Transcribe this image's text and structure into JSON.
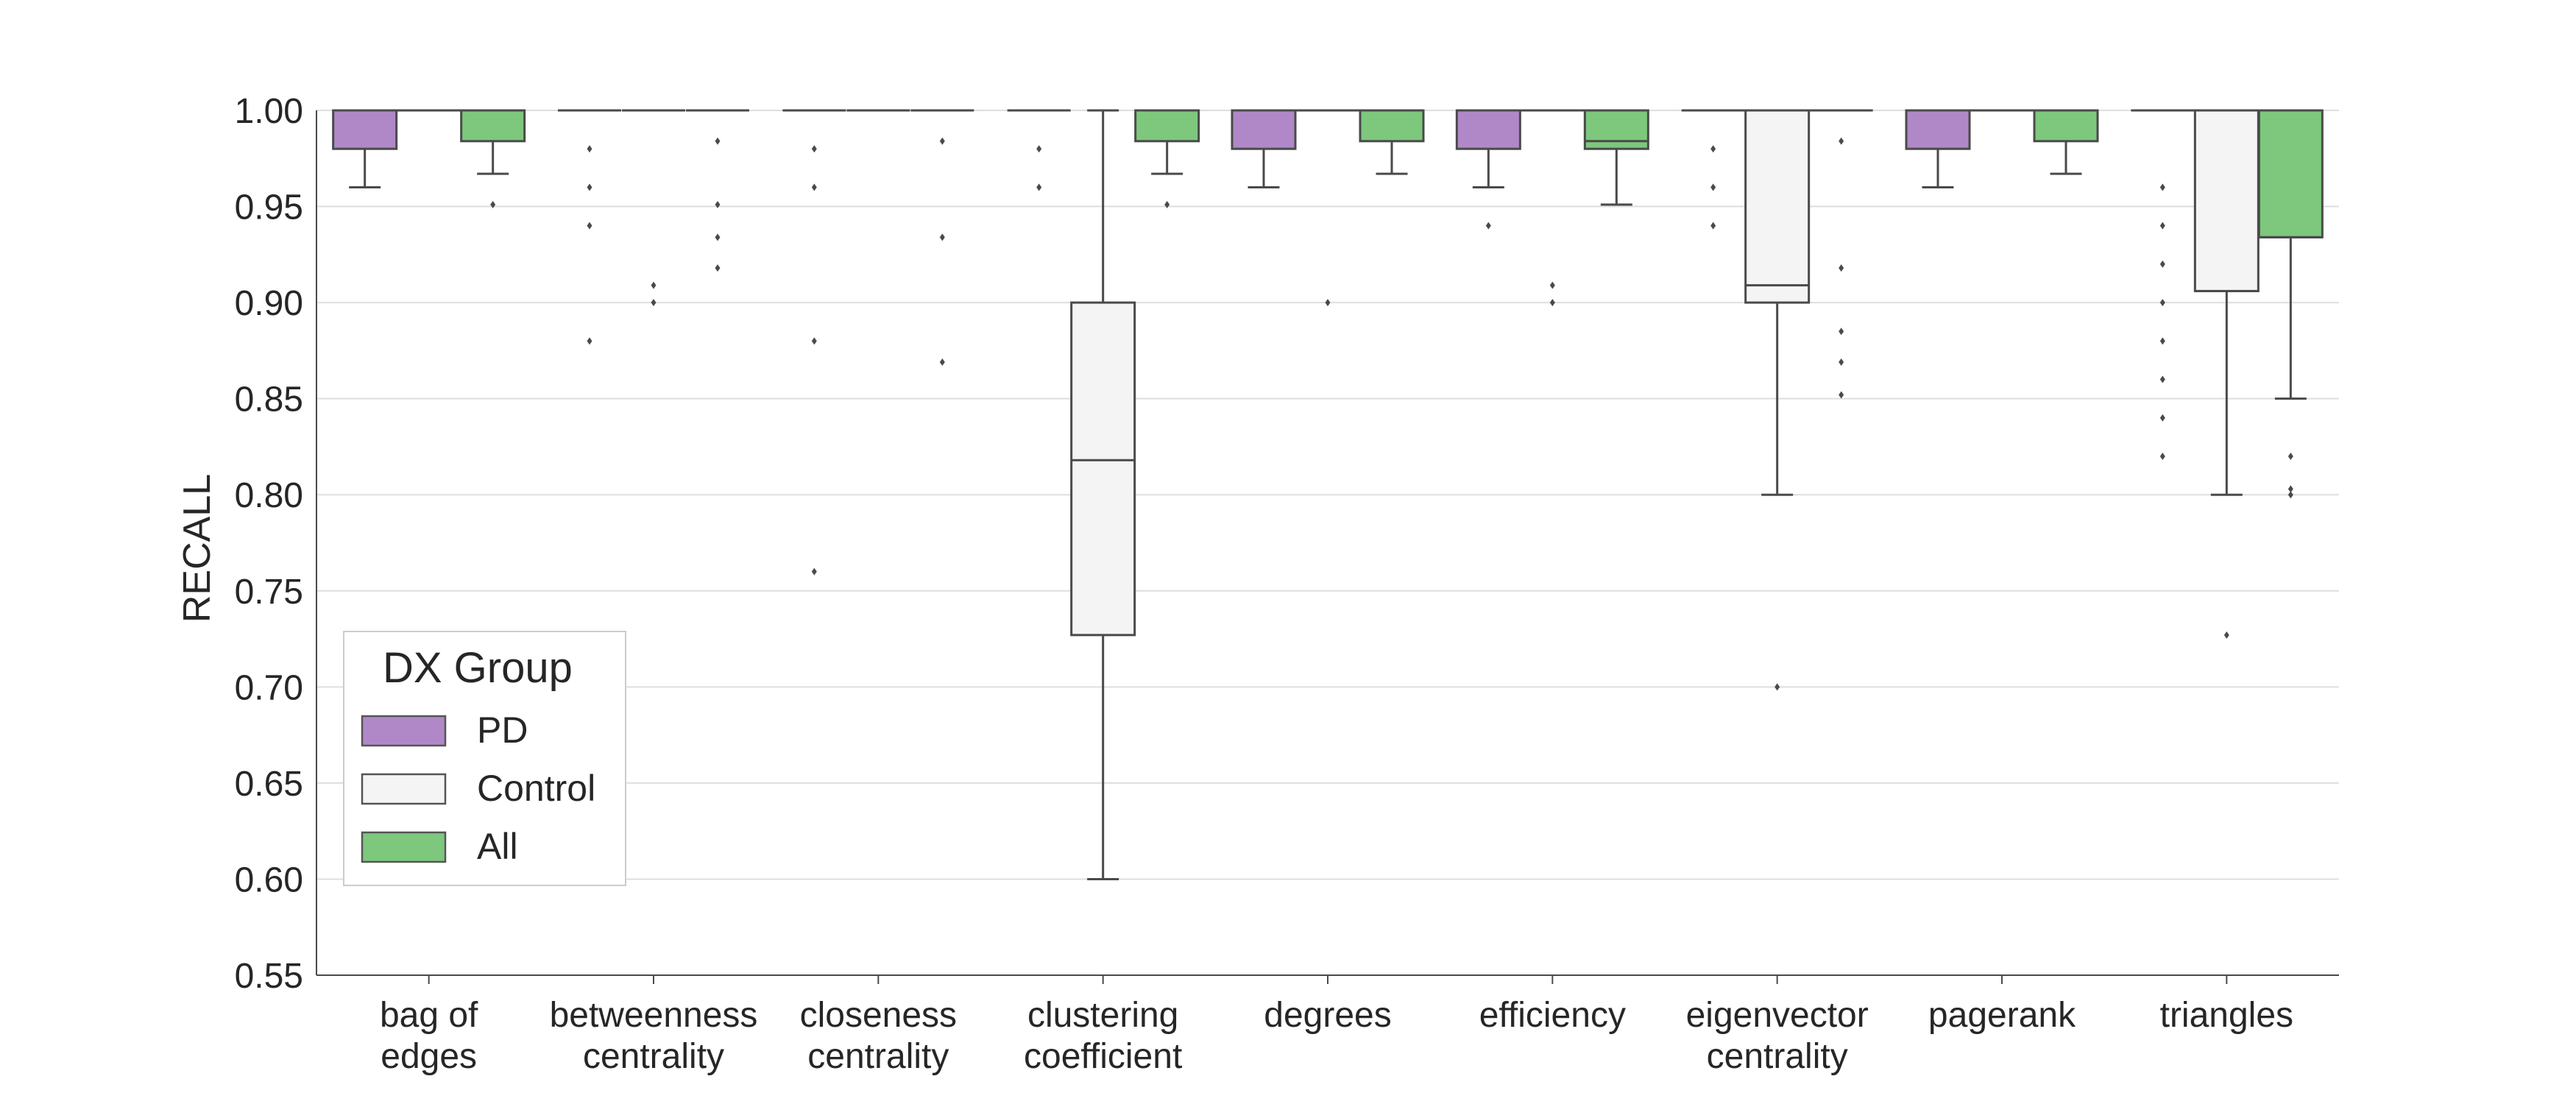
{
  "chart_data": {
    "type": "box",
    "ylabel": "RECALL",
    "ylim": [
      0.55,
      1.0
    ],
    "yticks": [
      "0.55",
      "0.60",
      "0.65",
      "0.70",
      "0.75",
      "0.80",
      "0.85",
      "0.90",
      "0.95",
      "1.00"
    ],
    "grid": "horizontal",
    "categories": [
      [
        "bag of",
        "edges"
      ],
      [
        "betweenness",
        "centrality"
      ],
      [
        "closeness",
        "centrality"
      ],
      [
        "clustering",
        "coefficient"
      ],
      [
        "degrees"
      ],
      [
        "efficiency"
      ],
      [
        "eigenvector",
        "centrality"
      ],
      [
        "pagerank"
      ],
      [
        "triangles"
      ]
    ],
    "legend": {
      "title": "DX Group",
      "placement": "lower-left",
      "entries": [
        {
          "label": "PD",
          "color": "#b088c8"
        },
        {
          "label": "Control",
          "color": "#f4f4f4"
        },
        {
          "label": "All",
          "color": "#7dc87d"
        }
      ]
    },
    "series": [
      {
        "name": "PD",
        "boxes": [
          {
            "whislo": 0.96,
            "q1": 0.98,
            "med": 1.0,
            "q3": 1.0,
            "whishi": 1.0,
            "fliers": []
          },
          {
            "whislo": 1.0,
            "q1": 1.0,
            "med": 1.0,
            "q3": 1.0,
            "whishi": 1.0,
            "fliers": [
              0.98,
              0.96,
              0.94,
              0.88
            ]
          },
          {
            "whislo": 1.0,
            "q1": 1.0,
            "med": 1.0,
            "q3": 1.0,
            "whishi": 1.0,
            "fliers": [
              0.98,
              0.96,
              0.88,
              0.76
            ]
          },
          {
            "whislo": 1.0,
            "q1": 1.0,
            "med": 1.0,
            "q3": 1.0,
            "whishi": 1.0,
            "fliers": [
              0.98,
              0.96
            ]
          },
          {
            "whislo": 0.96,
            "q1": 0.98,
            "med": 1.0,
            "q3": 1.0,
            "whishi": 1.0,
            "fliers": []
          },
          {
            "whislo": 0.96,
            "q1": 0.98,
            "med": 1.0,
            "q3": 1.0,
            "whishi": 1.0,
            "fliers": [
              0.94
            ]
          },
          {
            "whislo": 1.0,
            "q1": 1.0,
            "med": 1.0,
            "q3": 1.0,
            "whishi": 1.0,
            "fliers": [
              0.98,
              0.96,
              0.94
            ]
          },
          {
            "whislo": 0.96,
            "q1": 0.98,
            "med": 1.0,
            "q3": 1.0,
            "whishi": 1.0,
            "fliers": []
          },
          {
            "whislo": 1.0,
            "q1": 1.0,
            "med": 1.0,
            "q3": 1.0,
            "whishi": 1.0,
            "fliers": [
              0.96,
              0.94,
              0.92,
              0.9,
              0.88,
              0.86,
              0.84,
              0.82
            ]
          }
        ]
      },
      {
        "name": "Control",
        "boxes": [
          {
            "whislo": 1.0,
            "q1": 1.0,
            "med": 1.0,
            "q3": 1.0,
            "whishi": 1.0,
            "fliers": []
          },
          {
            "whislo": 1.0,
            "q1": 1.0,
            "med": 1.0,
            "q3": 1.0,
            "whishi": 1.0,
            "fliers": [
              0.909,
              0.9
            ]
          },
          {
            "whislo": 1.0,
            "q1": 1.0,
            "med": 1.0,
            "q3": 1.0,
            "whishi": 1.0,
            "fliers": []
          },
          {
            "whislo": 0.6,
            "q1": 0.727,
            "med": 0.818,
            "q3": 0.9,
            "whishi": 1.0,
            "fliers": []
          },
          {
            "whislo": 1.0,
            "q1": 1.0,
            "med": 1.0,
            "q3": 1.0,
            "whishi": 1.0,
            "fliers": [
              0.9
            ]
          },
          {
            "whislo": 1.0,
            "q1": 1.0,
            "med": 1.0,
            "q3": 1.0,
            "whishi": 1.0,
            "fliers": [
              0.909,
              0.9
            ]
          },
          {
            "whislo": 0.8,
            "q1": 0.9,
            "med": 0.909,
            "q3": 1.0,
            "whishi": 1.0,
            "fliers": [
              0.7
            ]
          },
          {
            "whislo": 1.0,
            "q1": 1.0,
            "med": 1.0,
            "q3": 1.0,
            "whishi": 1.0,
            "fliers": []
          },
          {
            "whislo": 0.8,
            "q1": 0.906,
            "med": 0.906,
            "q3": 1.0,
            "whishi": 1.0,
            "fliers": [
              0.727
            ]
          }
        ]
      },
      {
        "name": "All",
        "boxes": [
          {
            "whislo": 0.967,
            "q1": 0.984,
            "med": 1.0,
            "q3": 1.0,
            "whishi": 1.0,
            "fliers": [
              0.951
            ]
          },
          {
            "whislo": 1.0,
            "q1": 1.0,
            "med": 1.0,
            "q3": 1.0,
            "whishi": 1.0,
            "fliers": [
              0.984,
              0.951,
              0.934,
              0.918
            ]
          },
          {
            "whislo": 1.0,
            "q1": 1.0,
            "med": 1.0,
            "q3": 1.0,
            "whishi": 1.0,
            "fliers": [
              0.984,
              0.934,
              0.869
            ]
          },
          {
            "whislo": 0.967,
            "q1": 0.984,
            "med": 1.0,
            "q3": 1.0,
            "whishi": 1.0,
            "fliers": [
              0.951
            ]
          },
          {
            "whislo": 0.967,
            "q1": 0.984,
            "med": 1.0,
            "q3": 1.0,
            "whishi": 1.0,
            "fliers": []
          },
          {
            "whislo": 0.951,
            "q1": 0.98,
            "med": 0.984,
            "q3": 1.0,
            "whishi": 1.0,
            "fliers": []
          },
          {
            "whislo": 1.0,
            "q1": 1.0,
            "med": 1.0,
            "q3": 1.0,
            "whishi": 1.0,
            "fliers": [
              0.984,
              0.918,
              0.885,
              0.869,
              0.852
            ]
          },
          {
            "whislo": 0.967,
            "q1": 0.984,
            "med": 1.0,
            "q3": 1.0,
            "whishi": 1.0,
            "fliers": []
          },
          {
            "whislo": 0.85,
            "q1": 0.934,
            "med": 0.934,
            "q3": 1.0,
            "whishi": 1.0,
            "fliers": [
              0.82,
              0.803,
              0.8
            ]
          }
        ]
      }
    ]
  }
}
